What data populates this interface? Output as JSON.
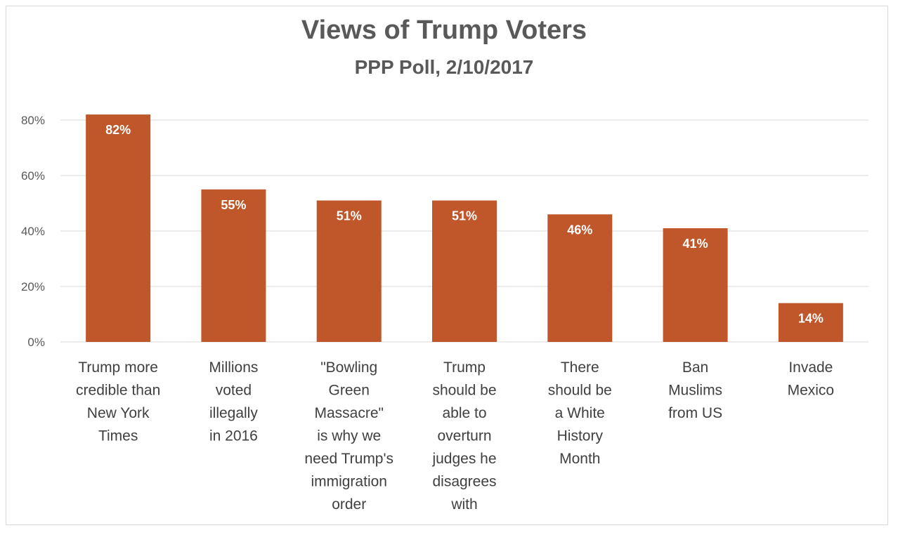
{
  "chart_data": {
    "type": "bar",
    "title": "Views of Trump Voters",
    "subtitle": "PPP Poll, 2/10/2017",
    "categories": [
      [
        "Trump more",
        "credible than",
        "New York",
        "Times"
      ],
      [
        "Millions",
        "voted",
        "illegally",
        "in 2016"
      ],
      [
        "\"Bowling",
        "Green",
        "Massacre\"",
        "is why we",
        "need Trump's",
        "immigration",
        "order"
      ],
      [
        "Trump",
        "should be",
        "able to",
        "overturn",
        "judges he",
        "disagrees",
        "with"
      ],
      [
        "There",
        "should be",
        "a White",
        "History",
        "Month"
      ],
      [
        "Ban",
        "Muslims",
        "from US"
      ],
      [
        "Invade",
        "Mexico"
      ]
    ],
    "values": [
      82,
      55,
      51,
      51,
      46,
      41,
      14
    ],
    "data_labels": [
      "82%",
      "55%",
      "51%",
      "51%",
      "46%",
      "41%",
      "14%"
    ],
    "y_ticks": [
      0,
      20,
      40,
      60,
      80
    ],
    "y_tick_labels": [
      "0%",
      "20%",
      "40%",
      "60%",
      "80%"
    ],
    "ylim": [
      0,
      80
    ],
    "grid": true,
    "legend": "none",
    "colors": {
      "bar": "#C0572A",
      "grid": "#d9d9d9",
      "title": "#595959"
    }
  }
}
